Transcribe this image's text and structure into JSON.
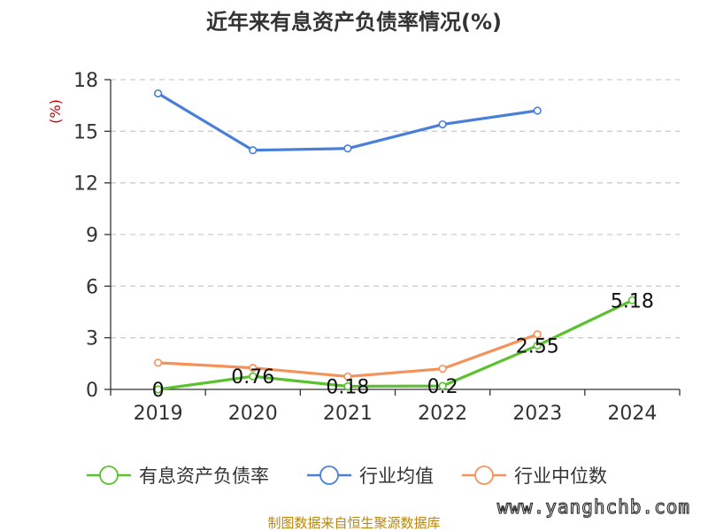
{
  "chart_data": {
    "type": "line",
    "title": "近年来有息资产负债率情况(%)",
    "ylabel": "(%)",
    "ylim": [
      0,
      18
    ],
    "yticks": [
      0,
      3,
      6,
      9,
      12,
      15,
      18
    ],
    "categories": [
      "2019",
      "2020",
      "2021",
      "2022",
      "2023",
      "2024"
    ],
    "grid": true,
    "legend_position": "bottom",
    "series": [
      {
        "name": "有息资产负债率",
        "color": "#5ac12f",
        "values": [
          0,
          0.76,
          0.18,
          0.2,
          2.55,
          5.18
        ],
        "data_labels": [
          "0",
          "0.76",
          "0.18",
          "0.2",
          "2.55",
          "5.18"
        ]
      },
      {
        "name": "行业均值",
        "color": "#4a7fd9",
        "values": [
          17.2,
          13.9,
          14.0,
          15.4,
          16.2,
          null
        ]
      },
      {
        "name": "行业中位数",
        "color": "#f5925a",
        "values": [
          1.55,
          1.25,
          0.75,
          1.2,
          3.2,
          null
        ]
      }
    ]
  },
  "colors": {
    "title": "#333333",
    "axis": "#333333",
    "grid": "#cccccc",
    "unit": "#cc0000",
    "source": "#b8860b",
    "watermark": "#333333"
  },
  "source_text": "制图数据来自恒生聚源数据库",
  "watermark_text": "www.yanghchb.com"
}
